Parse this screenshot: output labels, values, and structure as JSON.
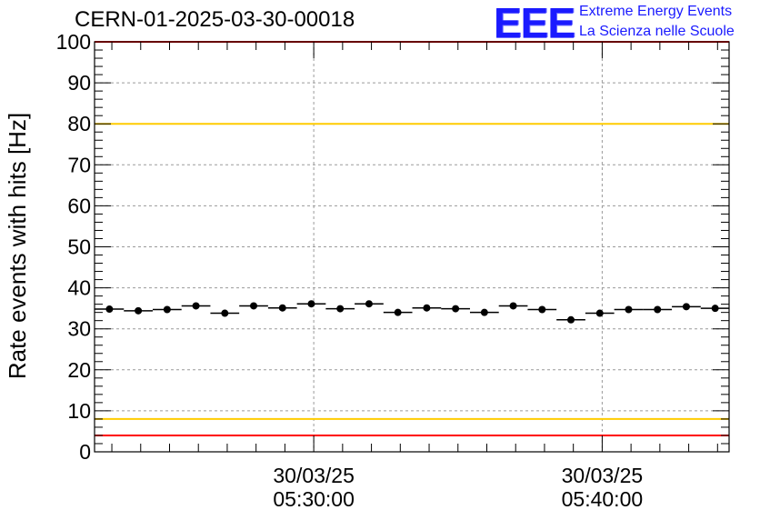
{
  "header": {
    "title": "CERN-01-2025-03-30-00018",
    "logo_mark": "EEE",
    "logo_line1": "Extreme Energy Events",
    "logo_line2": "La Scienza nelle Scuole"
  },
  "colors": {
    "axis": "#000000",
    "grid": "#9a9a9a",
    "points": "#000000",
    "red_limit": "#ff0000",
    "yellow_limit": "#ffcc00",
    "logo": "#1a1aff"
  },
  "chart_data": {
    "type": "scatter",
    "title": "CERN-01-2025-03-30-00018",
    "xlabel": "",
    "ylabel": "Rate events with hits [Hz]",
    "ylim": [
      0,
      100
    ],
    "xlim": [
      "05:22:24",
      "05:44:24"
    ],
    "yticks": [
      0,
      10,
      20,
      30,
      40,
      50,
      60,
      70,
      80,
      90,
      100
    ],
    "xticks": [
      {
        "x": "05:30:00",
        "date": "30/03/25",
        "time": "05:30:00"
      },
      {
        "x": "05:40:00",
        "date": "30/03/25",
        "time": "05:40:00"
      }
    ],
    "grid": true,
    "horizontal_lines": [
      {
        "y": 100,
        "color": "red"
      },
      {
        "y": 80,
        "color": "yellow"
      },
      {
        "y": 8,
        "color": "yellow"
      },
      {
        "y": 4,
        "color": "red"
      }
    ],
    "x": [
      "05:22:55",
      "05:23:55",
      "05:24:55",
      "05:25:55",
      "05:26:55",
      "05:27:55",
      "05:28:55",
      "05:29:55",
      "05:30:55",
      "05:31:55",
      "05:32:55",
      "05:33:55",
      "05:34:55",
      "05:35:55",
      "05:36:55",
      "05:37:55",
      "05:38:55",
      "05:39:55",
      "05:40:55",
      "05:41:55",
      "05:42:55",
      "05:43:55"
    ],
    "values": [
      34.8,
      34.4,
      34.7,
      35.6,
      33.8,
      35.6,
      35.1,
      36.1,
      34.9,
      36.1,
      34.0,
      35.1,
      34.9,
      34.0,
      35.6,
      34.7,
      32.2,
      33.8,
      34.7,
      34.7,
      35.4,
      35.0
    ],
    "x_error_halfwidth_seconds": 30
  }
}
